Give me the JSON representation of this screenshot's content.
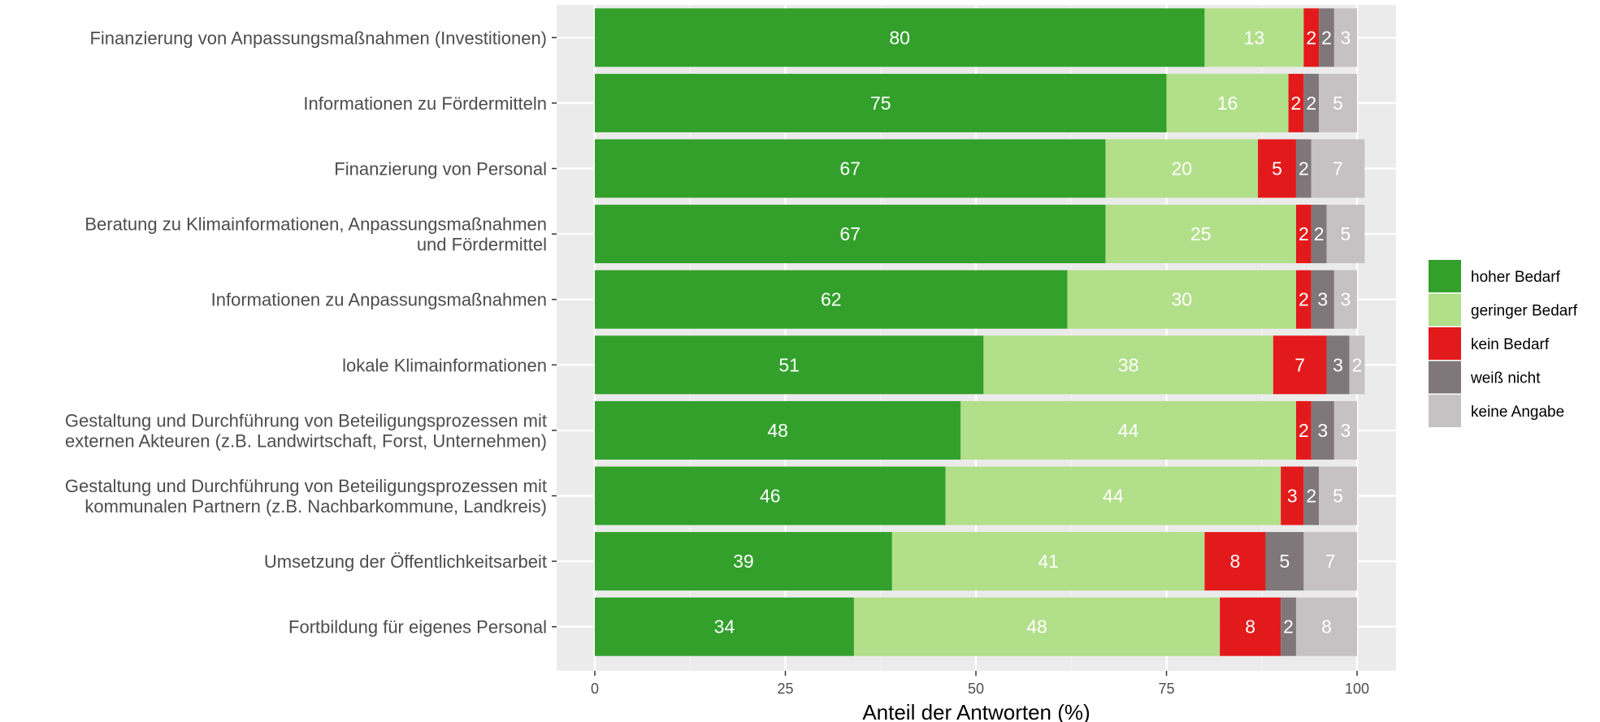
{
  "chart_data": {
    "type": "bar",
    "orientation": "horizontal",
    "stacked": true,
    "categories": [
      [
        "Finanzierung von Anpassungsmaßnahmen (Investitionen)"
      ],
      [
        "Informationen zu Fördermitteln"
      ],
      [
        "Finanzierung von Personal"
      ],
      [
        "Beratung zu Klimainformationen, Anpassungsmaßnahmen",
        "und Fördermittel"
      ],
      [
        "Informationen zu Anpassungsmaßnahmen"
      ],
      [
        "lokale Klimainformationen"
      ],
      [
        "Gestaltung und Durchführung von Beteiligungsprozessen mit",
        "externen Akteuren (z.B. Landwirtschaft, Forst, Unternehmen)"
      ],
      [
        "Gestaltung und Durchführung von  Beteiligungsprozessen mit",
        "kommunalen Partnern (z.B. Nachbarkommune, Landkreis)"
      ],
      [
        "Umsetzung der Öffentlichkeitsarbeit"
      ],
      [
        "Fortbildung für eigenes Personal"
      ]
    ],
    "series": [
      {
        "name": "hoher Bedarf",
        "color": "#33a02c",
        "values": [
          80,
          75,
          67,
          67,
          62,
          51,
          48,
          46,
          39,
          34
        ]
      },
      {
        "name": "geringer Bedarf",
        "color": "#b2df8a",
        "values": [
          13,
          16,
          20,
          25,
          30,
          38,
          44,
          44,
          41,
          48
        ]
      },
      {
        "name": "kein Bedarf",
        "color": "#e31a1c",
        "values": [
          2,
          2,
          5,
          2,
          2,
          7,
          2,
          3,
          8,
          8
        ]
      },
      {
        "name": "weiß nicht",
        "color": "#7f7779",
        "values": [
          2,
          2,
          2,
          2,
          3,
          3,
          3,
          2,
          5,
          2
        ]
      },
      {
        "name": "keine Angabe",
        "color": "#c6c1c2",
        "values": [
          3,
          5,
          7,
          5,
          3,
          2,
          3,
          5,
          7,
          8
        ]
      }
    ],
    "xlabel": "Anteil der Antworten (%)",
    "ylabel": "",
    "xlim": [
      0,
      100
    ],
    "xticks": [
      0,
      25,
      50,
      75,
      100
    ],
    "grid": true,
    "panel_background": "#ebebeb",
    "legend_position": "right"
  }
}
